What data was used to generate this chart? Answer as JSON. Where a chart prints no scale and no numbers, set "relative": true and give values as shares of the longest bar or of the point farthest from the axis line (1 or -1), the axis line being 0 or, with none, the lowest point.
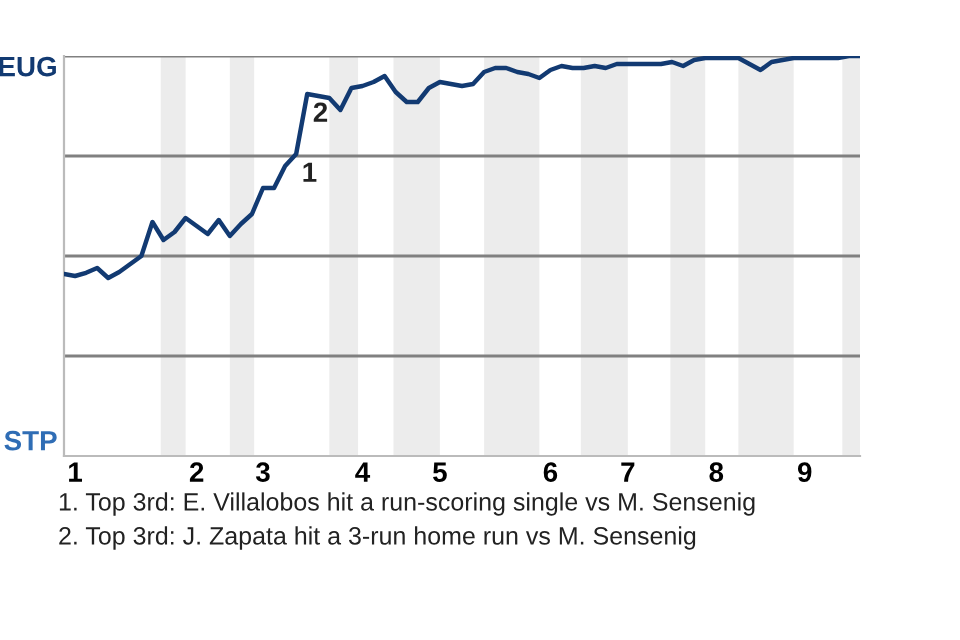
{
  "chart_data": {
    "type": "line",
    "relative": true,
    "categories": [
      null,
      "1",
      null,
      null,
      null,
      null,
      null,
      null,
      null,
      null,
      null,
      null,
      "2",
      null,
      null,
      null,
      null,
      null,
      "3",
      null,
      null,
      null,
      null,
      null,
      null,
      null,
      null,
      "4",
      null,
      null,
      null,
      null,
      null,
      null,
      "5",
      null,
      null,
      null,
      null,
      null,
      null,
      null,
      null,
      null,
      "6",
      null,
      null,
      null,
      null,
      null,
      null,
      "7",
      null,
      null,
      null,
      null,
      null,
      null,
      null,
      "8",
      null,
      null,
      null,
      null,
      null,
      null,
      null,
      "9",
      null,
      null,
      null,
      null,
      null
    ],
    "series": [
      {
        "color": "#123a72",
        "values": [
          0.455,
          0.45,
          0.458,
          0.47,
          0.445,
          0.46,
          0.48,
          0.5,
          0.585,
          0.54,
          0.56,
          0.595,
          0.575,
          0.555,
          0.59,
          0.55,
          0.58,
          0.605,
          0.67,
          0.67,
          0.725,
          0.755,
          0.905,
          0.9,
          0.895,
          0.865,
          0.92,
          0.925,
          0.935,
          0.95,
          0.91,
          0.885,
          0.885,
          0.92,
          0.935,
          0.93,
          0.925,
          0.93,
          0.96,
          0.97,
          0.97,
          0.96,
          0.955,
          0.945,
          0.965,
          0.975,
          0.97,
          0.97,
          0.975,
          0.97,
          0.98,
          0.98,
          0.98,
          0.98,
          0.98,
          0.985,
          0.975,
          0.99,
          0.995,
          0.995,
          0.995,
          0.995,
          0.98,
          0.965,
          0.985,
          0.99,
          0.995,
          0.995,
          0.995,
          0.995,
          0.995,
          1.0,
          1.0
        ]
      }
    ],
    "grid": false,
    "legend": false,
    "marker": "none",
    "line_style": "solid",
    "ref_lines": [
      {
        "axis": "y",
        "value": 0.25,
        "color": "#808080"
      },
      {
        "axis": "y",
        "value": 0.5,
        "color": "#808080"
      },
      {
        "axis": "y",
        "value": 0.75,
        "color": "#808080"
      },
      {
        "axis": "y",
        "value": 1,
        "color": "#808080"
      }
    ],
    "annotations": [
      "EUG",
      "STP",
      {
        "text": "1",
        "y": 0.755
      },
      {
        "text": "2",
        "y": 0.905
      },
      "1. Top 3rd: E. Villalobos hit a run-scoring single vs M. Sensenig",
      "2. Top 3rd: J. Zapata hit a 3-run home run vs M. Sensenig"
    ]
  }
}
